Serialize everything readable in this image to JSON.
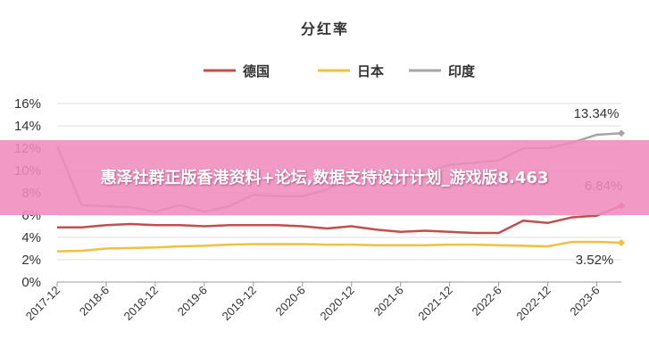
{
  "chart_data": {
    "type": "line",
    "title": "分红率",
    "xlabel": "",
    "ylabel": "",
    "ylim": [
      0,
      16
    ],
    "yticks": [
      "0%",
      "2%",
      "4%",
      "6%",
      "8%",
      "10%",
      "12%",
      "14%",
      "16%"
    ],
    "ytick_values": [
      0,
      2,
      4,
      6,
      8,
      10,
      12,
      14,
      16
    ],
    "xtick_labels": [
      "2017-12",
      "2018-6",
      "2018-12",
      "2019-6",
      "2019-12",
      "2020-6",
      "2020-12",
      "2021-6",
      "2021-12",
      "2022-6",
      "2022-12",
      "2023-6"
    ],
    "grid": true,
    "legend": "top",
    "series": [
      {
        "name": "德国",
        "color": "#c0504d",
        "values": [
          4.9,
          4.9,
          5.1,
          5.2,
          5.1,
          5.1,
          5.0,
          5.1,
          5.1,
          5.1,
          5.0,
          4.8,
          5.0,
          4.7,
          4.5,
          4.6,
          4.5,
          4.4,
          4.4,
          5.5,
          5.3,
          5.8,
          5.95,
          6.84
        ]
      },
      {
        "name": "日本",
        "color": "#f0c040",
        "values": [
          2.75,
          2.8,
          3.0,
          3.05,
          3.1,
          3.2,
          3.25,
          3.35,
          3.4,
          3.4,
          3.4,
          3.35,
          3.35,
          3.3,
          3.3,
          3.3,
          3.35,
          3.35,
          3.3,
          3.25,
          3.2,
          3.6,
          3.6,
          3.52
        ]
      },
      {
        "name": "印度",
        "color": "#a6a6a6",
        "values": [
          12.2,
          6.9,
          6.8,
          6.7,
          6.3,
          6.9,
          6.3,
          6.8,
          7.8,
          7.7,
          7.7,
          8.3,
          9.5,
          9.5,
          9.4,
          9.8,
          10.5,
          10.7,
          10.9,
          12.0,
          12.0,
          12.5,
          13.2,
          13.34
        ]
      }
    ],
    "annotations": [
      "13.34%",
      "6.84%",
      "3.52%"
    ]
  },
  "banner": {
    "text": "惠泽社群正版香港资料+论坛,数据支持设计计划_游戏版8.463"
  }
}
